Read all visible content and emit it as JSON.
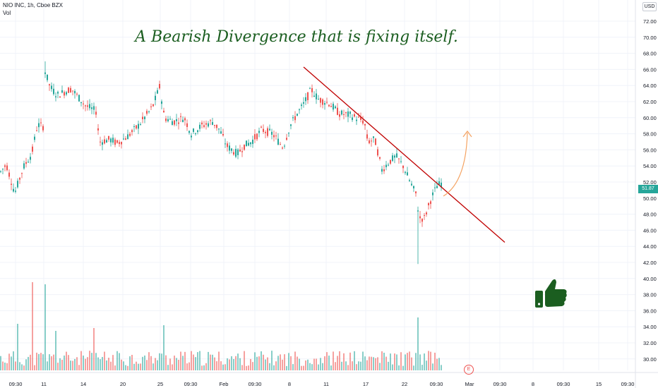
{
  "header": {
    "symbol_line": "NIO INC, 1h, Cboe BZX",
    "volume_label": "Vol",
    "currency": "USD"
  },
  "annotation": {
    "title": "A Bearish Divergence that is fixing itself."
  },
  "last_price": "51.87",
  "earnings_marker": "E",
  "colors": {
    "up": "#26a69a",
    "down": "#ef5350",
    "trendline": "#c00000",
    "arrow": "#f4a261",
    "annotation_text": "#1b5e20",
    "thumb": "#1b5e20"
  },
  "chart_data": {
    "type": "candlestick",
    "price_axis": {
      "ticks": [
        "72.00",
        "70.00",
        "68.00",
        "66.00",
        "64.00",
        "62.00",
        "60.00",
        "58.00",
        "56.00",
        "54.00",
        "52.00",
        "50.00",
        "48.00",
        "46.00",
        "44.00",
        "42.00",
        "40.00",
        "38.00",
        "36.00",
        "34.00",
        "32.00",
        "30.00"
      ],
      "ylim": [
        29,
        73
      ]
    },
    "time_axis": {
      "labels": [
        "09:30",
        "11",
        "14",
        "20",
        "25",
        "09:30",
        "Feb",
        "09:30",
        "8",
        "11",
        "17",
        "22",
        "09:30",
        "Mar",
        "09:30",
        "8",
        "09:30",
        "15",
        "09:30"
      ]
    },
    "price_path": [
      [
        0,
        53.3
      ],
      [
        8,
        54.2
      ],
      [
        20,
        50.6
      ],
      [
        32,
        53.8
      ],
      [
        44,
        55.5
      ],
      [
        52,
        59.1
      ],
      [
        60,
        58.9
      ],
      [
        62,
        66.0
      ],
      [
        70,
        63.8
      ],
      [
        80,
        62.8
      ],
      [
        100,
        63.6
      ],
      [
        120,
        61.5
      ],
      [
        135,
        60.8
      ],
      [
        140,
        57.0
      ],
      [
        155,
        57.3
      ],
      [
        165,
        56.8
      ],
      [
        180,
        57.7
      ],
      [
        195,
        59.0
      ],
      [
        215,
        61.3
      ],
      [
        225,
        63.8
      ],
      [
        232,
        60.0
      ],
      [
        245,
        59.5
      ],
      [
        260,
        60.0
      ],
      [
        270,
        58.0
      ],
      [
        285,
        59.0
      ],
      [
        300,
        59.5
      ],
      [
        310,
        58.5
      ],
      [
        320,
        56.5
      ],
      [
        335,
        55.5
      ],
      [
        345,
        56.5
      ],
      [
        355,
        57.0
      ],
      [
        370,
        58.5
      ],
      [
        385,
        58.0
      ],
      [
        400,
        56.3
      ],
      [
        410,
        59.0
      ],
      [
        420,
        60.5
      ],
      [
        428,
        61.5
      ],
      [
        440,
        63.5
      ],
      [
        450,
        62.3
      ],
      [
        465,
        61.8
      ],
      [
        480,
        60.5
      ],
      [
        495,
        60.3
      ],
      [
        508,
        59.8
      ],
      [
        515,
        59.5
      ],
      [
        520,
        57.0
      ],
      [
        530,
        57.3
      ],
      [
        540,
        53.5
      ],
      [
        550,
        54.5
      ],
      [
        560,
        55.2
      ],
      [
        570,
        54.0
      ],
      [
        575,
        53.0
      ],
      [
        580,
        52.0
      ],
      [
        588,
        50.5
      ],
      [
        593,
        47.5
      ],
      [
        600,
        47.5
      ],
      [
        610,
        50.0
      ],
      [
        618,
        51.5
      ],
      [
        625,
        51.9
      ]
    ],
    "annotations": {
      "trendline": {
        "from": [
          430,
          66.3
        ],
        "to": [
          715,
          44.5
        ]
      },
      "curved_arrow": "up"
    }
  }
}
